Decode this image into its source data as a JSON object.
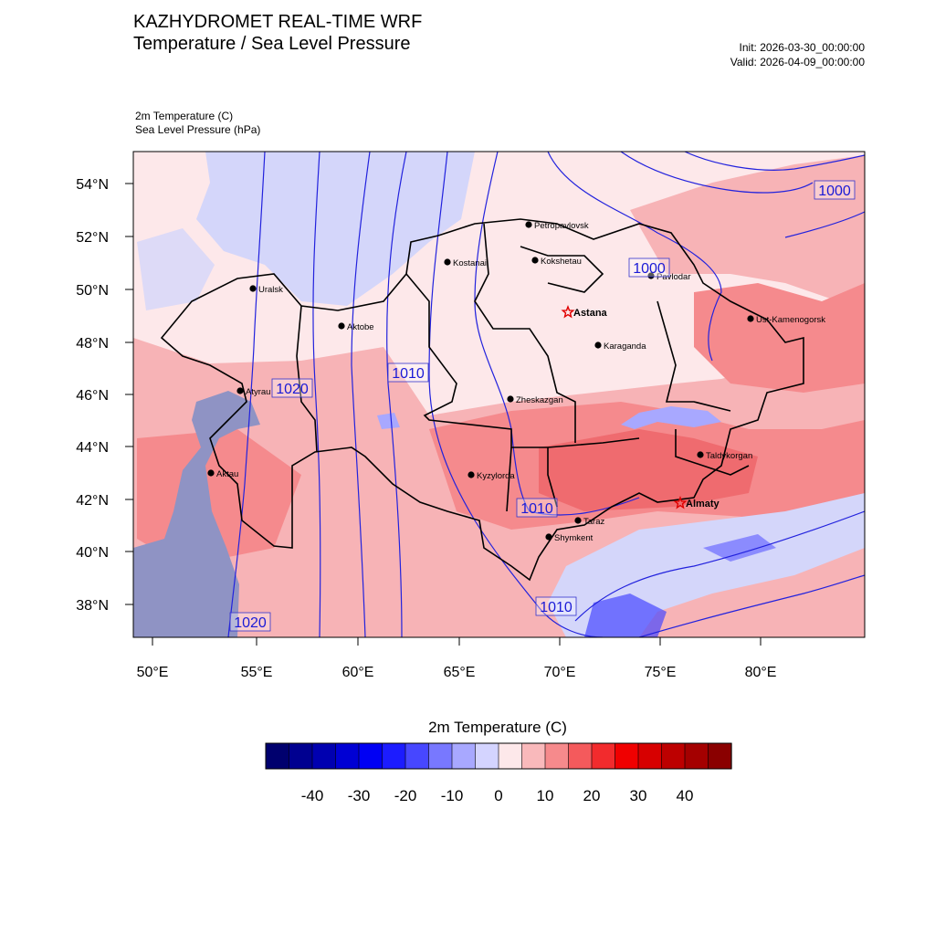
{
  "header": {
    "title_line1": "KAZHYDROMET REAL-TIME WRF",
    "title_line2": "Temperature / Sea Level Pressure",
    "init": "Init: 2026-03-30_00:00:00",
    "valid": "Valid: 2026-04-09_00:00:00",
    "field1": "2m Temperature   (C)",
    "field2": "Sea Level Pressure   (hPa)"
  },
  "map": {
    "lat_labels": [
      "54°N",
      "52°N",
      "50°N",
      "48°N",
      "46°N",
      "44°N",
      "42°N",
      "40°N",
      "38°N"
    ],
    "lon_labels": [
      "50°E",
      "55°E",
      "60°E",
      "65°E",
      "70°E",
      "75°E",
      "80°E"
    ],
    "cities": [
      {
        "name": "Petropavlovsk",
        "marker": "dot"
      },
      {
        "name": "Kokshetau",
        "marker": "dot"
      },
      {
        "name": "Kostanai",
        "marker": "dot"
      },
      {
        "name": "Pavlodar",
        "marker": "dot"
      },
      {
        "name": "Uralsk",
        "marker": "dot"
      },
      {
        "name": "Astana",
        "marker": "star"
      },
      {
        "name": "Aktobe",
        "marker": "dot"
      },
      {
        "name": "Ust-Kamenogorsk",
        "marker": "dot"
      },
      {
        "name": "Karaganda",
        "marker": "dot"
      },
      {
        "name": "Atyrau",
        "marker": "dot"
      },
      {
        "name": "Zheskazgan",
        "marker": "dot"
      },
      {
        "name": "Taldykorgan",
        "marker": "dot"
      },
      {
        "name": "Aktau",
        "marker": "dot"
      },
      {
        "name": "Kyzylorda",
        "marker": "dot"
      },
      {
        "name": "Almaty",
        "marker": "star"
      },
      {
        "name": "Taraz",
        "marker": "dot"
      },
      {
        "name": "Shymkent",
        "marker": "dot"
      }
    ],
    "contour_labels": [
      "1000",
      "1000",
      "1010",
      "1020",
      "1010",
      "1010",
      "1020"
    ],
    "colors": {
      "water": "#8f93c4",
      "contour": "#2222dd",
      "t_cold": "#d4d6fa",
      "t_neutral": "#fde8ea",
      "t_warm": "#f7b3b6",
      "t_hot": "#f58a8d",
      "t_hotter": "#ef6b6f"
    }
  },
  "colorbar": {
    "title": "2m Temperature  (C)",
    "colors": [
      "#00006e",
      "#000090",
      "#0000b0",
      "#0000d4",
      "#0000f4",
      "#1c1cff",
      "#4747ff",
      "#7878ff",
      "#a8a8ff",
      "#d4d4ff",
      "#fde8ea",
      "#f9b9bb",
      "#f68a8c",
      "#f45a5c",
      "#f22b2d",
      "#f00000",
      "#d70000",
      "#bd0000",
      "#a40000",
      "#8a0000"
    ],
    "tick_labels": [
      "-40",
      "-30",
      "-20",
      "-10",
      "0",
      "10",
      "20",
      "30",
      "40"
    ]
  }
}
